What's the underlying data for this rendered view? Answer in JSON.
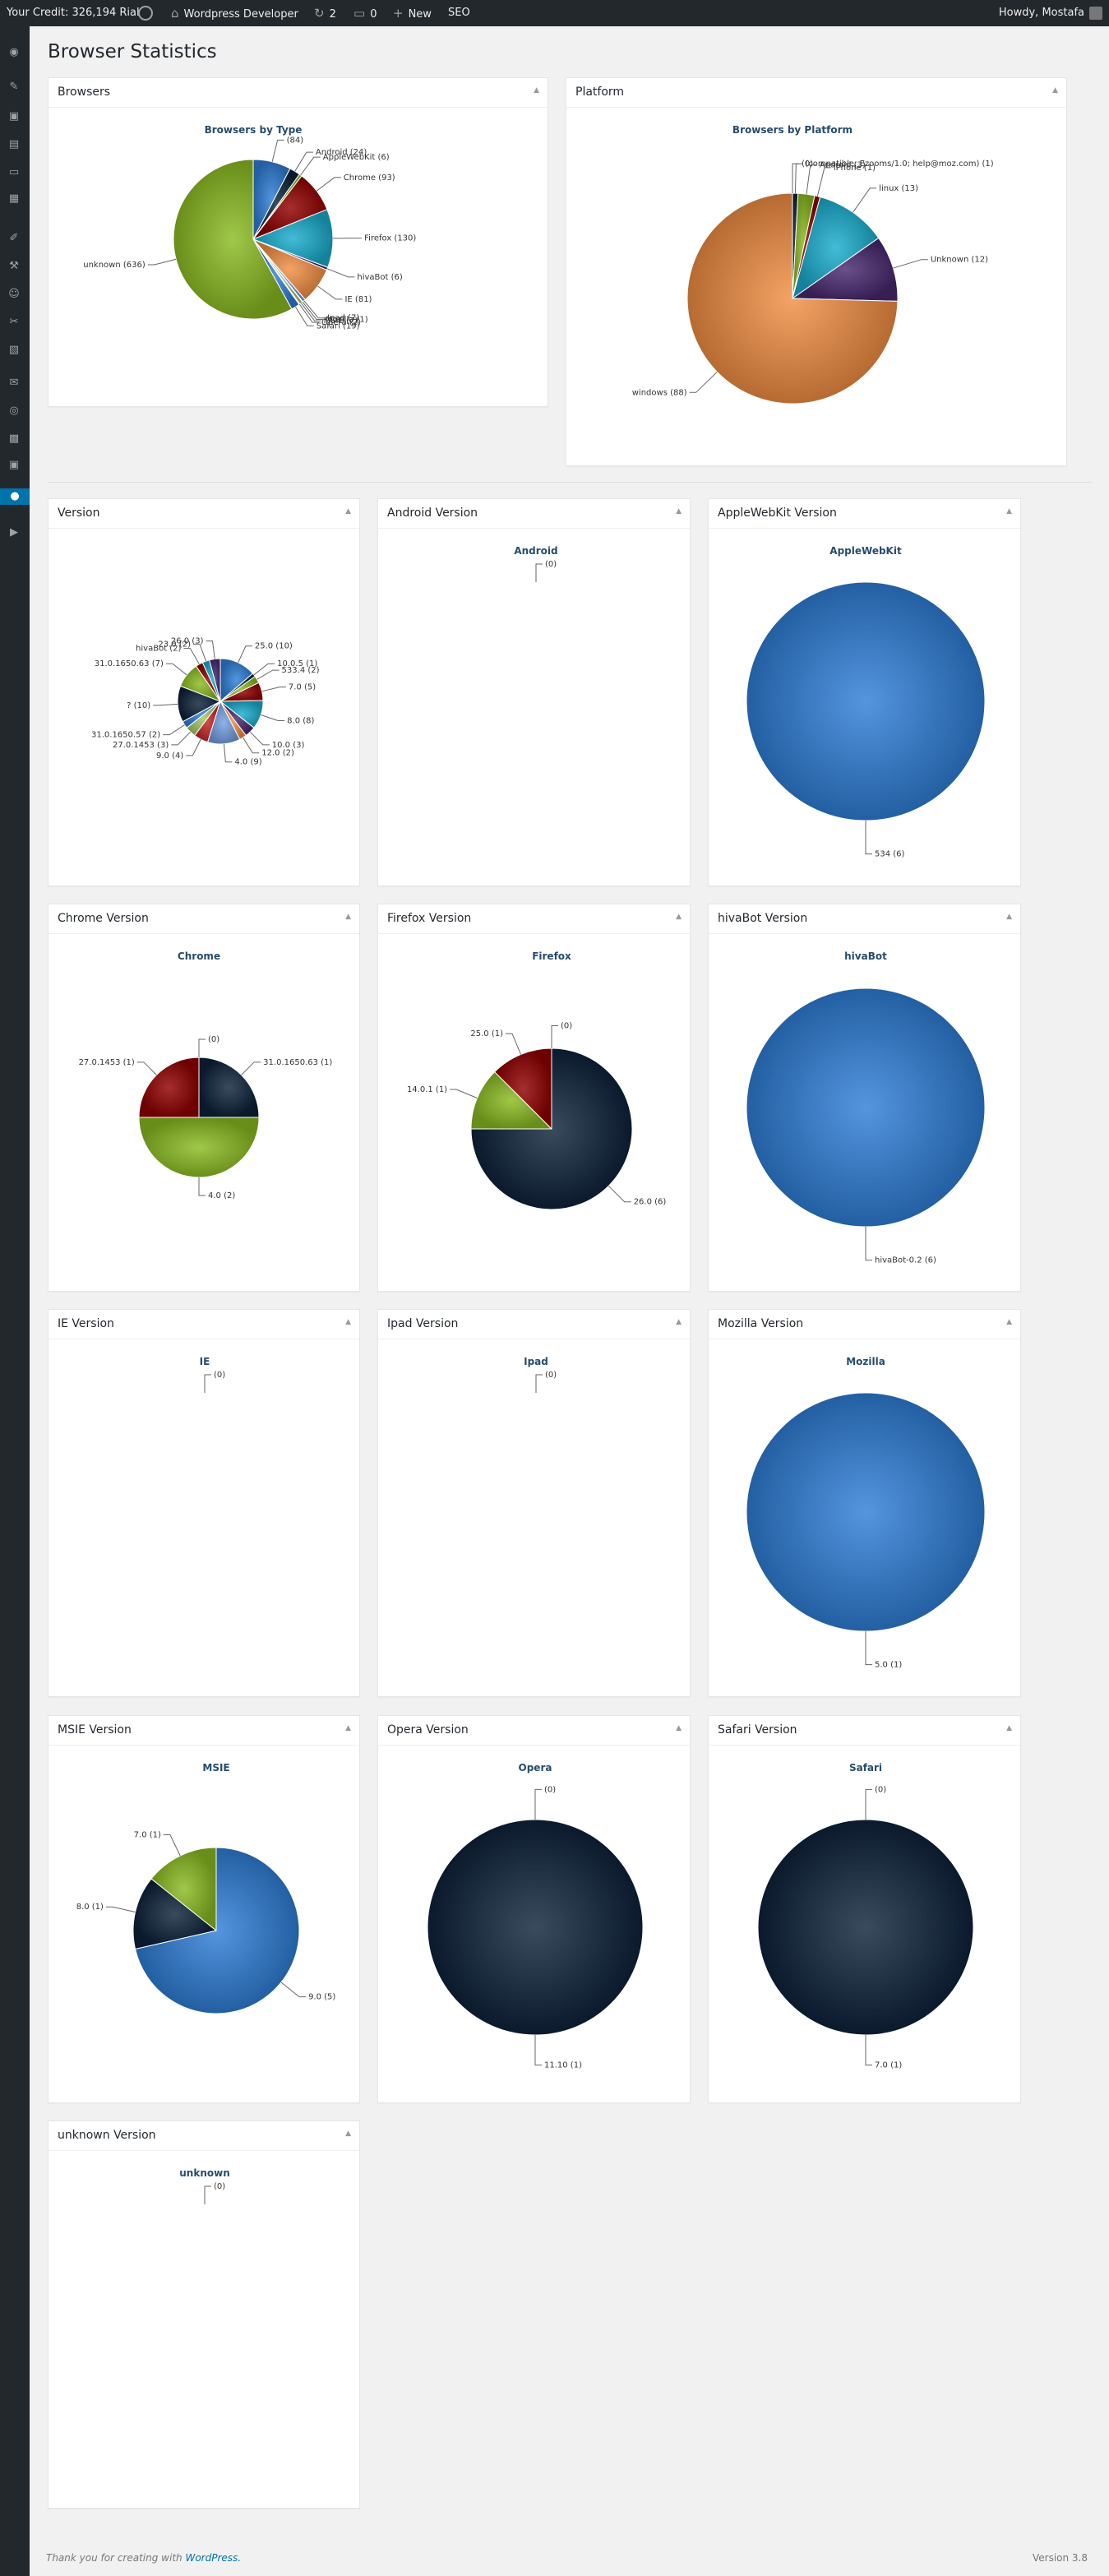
{
  "admin_bar": {
    "credit": "Your Credit: 326,194 Rial",
    "site": "Wordpress Developer",
    "updates": "2",
    "comments": "0",
    "new": "New",
    "seo": "SEO",
    "howdy": "Howdy, Mostafa"
  },
  "page": {
    "title": "Browser Statistics"
  },
  "footer": {
    "thanks": "Thank you for creating with ",
    "link": "WordPress.",
    "version": "Version 3.8"
  },
  "colors": {
    "blue": "#2f7ed8",
    "navy": "#0d233a",
    "green": "#8bbc21",
    "darkred": "#910000",
    "teal": "#1aadce",
    "purple": "#492970",
    "orange": "#f28f43",
    "lightblue": "#77a1e5",
    "pink": "#c42525",
    "olive": "#a6c96a"
  },
  "icons": [
    "dashboard-icon",
    "posts-icon",
    "media-icon",
    "pages-icon",
    "comments-icon",
    "feedback-icon",
    "appearance-icon",
    "plugins-icon",
    "users-icon",
    "tools-icon",
    "settings-icon",
    "woo-icon",
    "seo-icon",
    "slider-icon",
    "wordpress-icon",
    "statistics-icon",
    "play-icon"
  ],
  "chart_data": [
    {
      "id": "browsers",
      "panel": "Browsers",
      "title": "Browsers by Type",
      "type": "pie",
      "labels": [
        "(84)",
        "Android (24)",
        "AppleWebKit (6)",
        "Chrome (93)",
        "Firefox (130)",
        "hivaBot (6)",
        "IE (81)",
        "Ipad (7)",
        "Mozilla (1)",
        "MSIE (7)",
        "Opera (2)",
        "Safari (19)",
        "unknown (636)"
      ],
      "values": [
        84,
        24,
        6,
        93,
        130,
        6,
        81,
        7,
        1,
        7,
        2,
        19,
        636
      ]
    },
    {
      "id": "platform",
      "panel": "Platform",
      "title": "Browsers by Platform",
      "type": "pie",
      "labels": [
        "(0)",
        "(compatible; Ezooms/1.0; help@moz.com) (1)",
        "Android (3)",
        "iPhone (1)",
        "linux (13)",
        "Unknown (12)",
        "windows (88)"
      ],
      "values": [
        0,
        1,
        3,
        1,
        13,
        12,
        88
      ]
    },
    {
      "id": "version",
      "panel": "Version",
      "title": "",
      "type": "pie",
      "labels": [
        "25.0 (10)",
        "10.0.5 (1)",
        "533.4 (2)",
        "7.0 (5)",
        "8.0 (8)",
        "10.0 (3)",
        "12.0 (2)",
        "4.0 (9)",
        "9.0 (4)",
        "27.0.1453 (3)",
        "31.0.1650.57 (2)",
        "? (10)",
        "31.0.1650.63 (7)",
        "hivaBot (2)",
        "23.0 (2)",
        "26.0 (3)"
      ],
      "values": [
        10,
        1,
        2,
        5,
        8,
        3,
        2,
        9,
        4,
        3,
        2,
        10,
        7,
        2,
        2,
        3
      ]
    },
    {
      "id": "android",
      "panel": "Android Version",
      "title": "Android",
      "type": "pie",
      "labels": [
        "(0)"
      ],
      "values": [
        0
      ]
    },
    {
      "id": "applewebkit",
      "panel": "AppleWebKit Version",
      "title": "AppleWebKit",
      "type": "pie",
      "labels": [
        "534 (6)"
      ],
      "values": [
        6
      ]
    },
    {
      "id": "chrome",
      "panel": "Chrome Version",
      "title": "Chrome",
      "type": "pie",
      "labels": [
        "(0)",
        "31.0.1650.63 (1)",
        "4.0 (2)",
        "27.0.1453 (1)"
      ],
      "values": [
        0,
        1,
        2,
        1
      ]
    },
    {
      "id": "firefox",
      "panel": "Firefox Version",
      "title": "Firefox",
      "type": "pie",
      "labels": [
        "(0)",
        "26.0 (6)",
        "14.0.1 (1)",
        "25.0 (1)"
      ],
      "values": [
        0,
        6,
        1,
        1
      ]
    },
    {
      "id": "hivabot",
      "panel": "hivaBot Version",
      "title": "hivaBot",
      "type": "pie",
      "labels": [
        "hivaBot-0.2 (6)"
      ],
      "values": [
        6
      ]
    },
    {
      "id": "ie",
      "panel": "IE Version",
      "title": "IE",
      "type": "pie",
      "labels": [
        "(0)"
      ],
      "values": [
        0
      ]
    },
    {
      "id": "ipad",
      "panel": "Ipad Version",
      "title": "Ipad",
      "type": "pie",
      "labels": [
        "(0)"
      ],
      "values": [
        0
      ]
    },
    {
      "id": "mozilla",
      "panel": "Mozilla Version",
      "title": "Mozilla",
      "type": "pie",
      "labels": [
        "5.0 (1)"
      ],
      "values": [
        1
      ]
    },
    {
      "id": "msie",
      "panel": "MSIE Version",
      "title": "MSIE",
      "type": "pie",
      "labels": [
        "9.0 (5)",
        "8.0 (1)",
        "7.0 (1)"
      ],
      "values": [
        5,
        1,
        1
      ]
    },
    {
      "id": "opera",
      "panel": "Opera Version",
      "title": "Opera",
      "type": "pie",
      "labels": [
        "(0)",
        "11.10 (1)"
      ],
      "values": [
        0,
        1
      ]
    },
    {
      "id": "safari",
      "panel": "Safari Version",
      "title": "Safari",
      "type": "pie",
      "labels": [
        "(0)",
        "7.0 (1)"
      ],
      "values": [
        0,
        1
      ]
    },
    {
      "id": "unknown",
      "panel": "unknown Version",
      "title": "unknown",
      "type": "pie",
      "labels": [
        "(0)"
      ],
      "values": [
        0
      ]
    }
  ]
}
